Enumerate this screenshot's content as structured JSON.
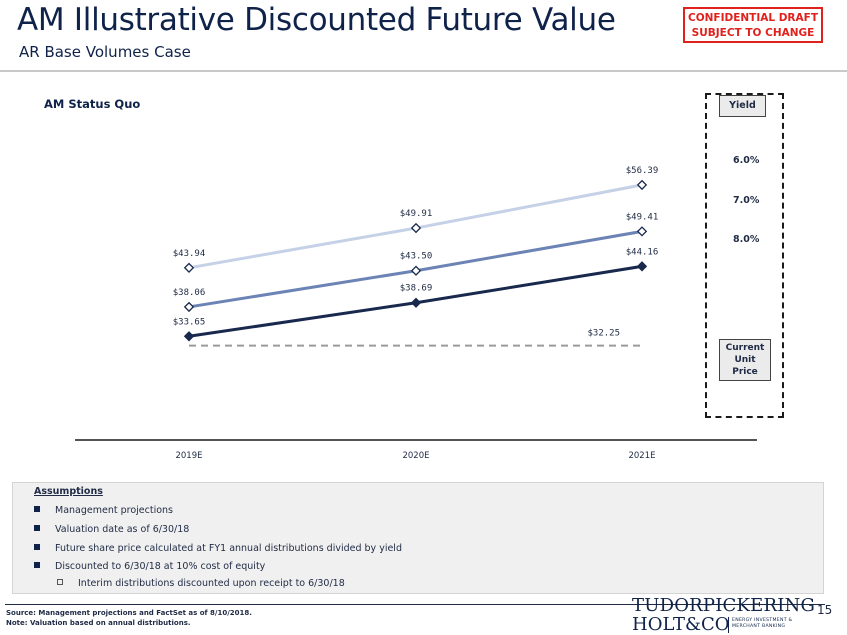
{
  "header": {
    "title": "AM Illustrative Discounted Future Value",
    "subtitle": "AR Base Volumes Case",
    "confidential_line1": "CONFIDENTIAL DRAFT",
    "confidential_line2": "SUBJECT TO CHANGE"
  },
  "section_label": "AM Status Quo",
  "chart_data": {
    "type": "line",
    "categories": [
      "2019E",
      "2020E",
      "2021E"
    ],
    "series": [
      {
        "name": "6.0%",
        "values": [
          43.94,
          49.91,
          56.39
        ],
        "labels": [
          "$43.94",
          "$49.91",
          "$56.39"
        ],
        "color": "#c5d1e6"
      },
      {
        "name": "7.0%",
        "values": [
          38.06,
          43.5,
          49.41
        ],
        "labels": [
          "$38.06",
          "$43.50",
          "$49.41"
        ],
        "color": "#6b83b5"
      },
      {
        "name": "8.0%",
        "values": [
          33.65,
          38.69,
          44.16
        ],
        "labels": [
          "$33.65",
          "$38.69",
          "$44.16"
        ],
        "color": "#18294d"
      }
    ],
    "reference_line": {
      "name": "Current Unit Price",
      "value": 32.25,
      "label": "$32.25",
      "color": "#9a9a9a",
      "style": "dashed"
    },
    "legend_title": "Yield"
  },
  "legend": {
    "title": "Yield",
    "values": [
      "6.0%",
      "7.0%",
      "8.0%"
    ],
    "current_price_lines": [
      "Current",
      "Unit",
      "Price"
    ]
  },
  "assumptions": {
    "title": "Assumptions",
    "bullets": [
      "Management projections",
      "Valuation date as of 6/30/18",
      "Future share price calculated at FY1 annual distributions divided by yield",
      "Discounted to 6/30/18 at 10% cost of equity"
    ],
    "sub_bullet": "Interim distributions discounted upon receipt to 6/30/18"
  },
  "footer": {
    "source": "Source: Management projections and FactSet as of 8/10/2018.",
    "note": "Note: Valuation based on annual distributions.",
    "logo_line1": "TUDORPICKERING",
    "logo_line2": "HOLT&CO",
    "logo_tag1": "ENERGY INVESTMENT &",
    "logo_tag2": "MERCHANT BANKING",
    "page_number": "15"
  }
}
